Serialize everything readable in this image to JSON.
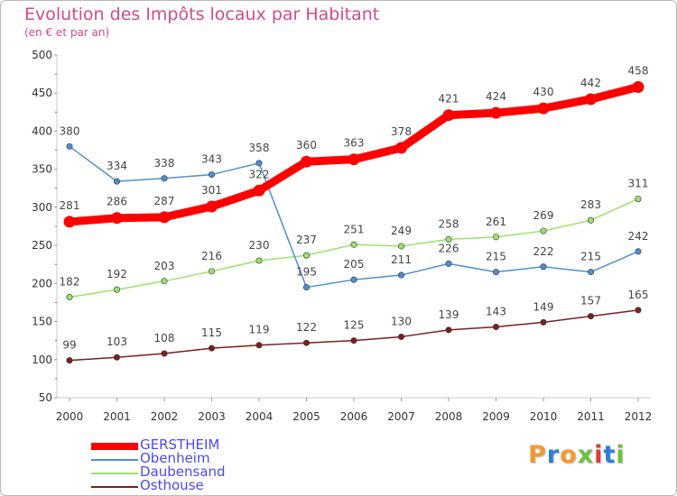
{
  "title": "Evolution des Impôts locaux par Habitant",
  "subtitle": "(en € et par an)",
  "logo": "Proxiti",
  "chart_data": {
    "type": "line",
    "title": "Evolution des Impôts locaux par Habitant",
    "subtitle": "(en € et par an)",
    "x": [
      "2000",
      "2001",
      "2002",
      "2003",
      "2004",
      "2005",
      "2006",
      "2007",
      "2008",
      "2009",
      "2010",
      "2011",
      "2012"
    ],
    "ylim": [
      50,
      500
    ],
    "yticks": [
      50,
      100,
      150,
      200,
      250,
      300,
      350,
      400,
      450,
      500
    ],
    "grid": false,
    "legend_position": "bottom-left",
    "series": [
      {
        "name": "GERSTHEIM",
        "color": "#ff0000",
        "values": [
          281,
          286,
          287,
          301,
          322,
          360,
          363,
          378,
          421,
          424,
          430,
          442,
          458
        ]
      },
      {
        "name": "Obenheim",
        "color": "#4f8fd0",
        "values": [
          380,
          334,
          338,
          343,
          358,
          195,
          205,
          211,
          226,
          215,
          222,
          215,
          242
        ]
      },
      {
        "name": "Daubensand",
        "color": "#99e26c",
        "values": [
          182,
          192,
          203,
          216,
          230,
          237,
          251,
          249,
          258,
          261,
          269,
          283,
          311
        ]
      },
      {
        "name": "Osthouse",
        "color": "#7a1f1f",
        "values": [
          99,
          103,
          108,
          115,
          119,
          122,
          125,
          130,
          139,
          143,
          149,
          157,
          165
        ]
      }
    ]
  }
}
